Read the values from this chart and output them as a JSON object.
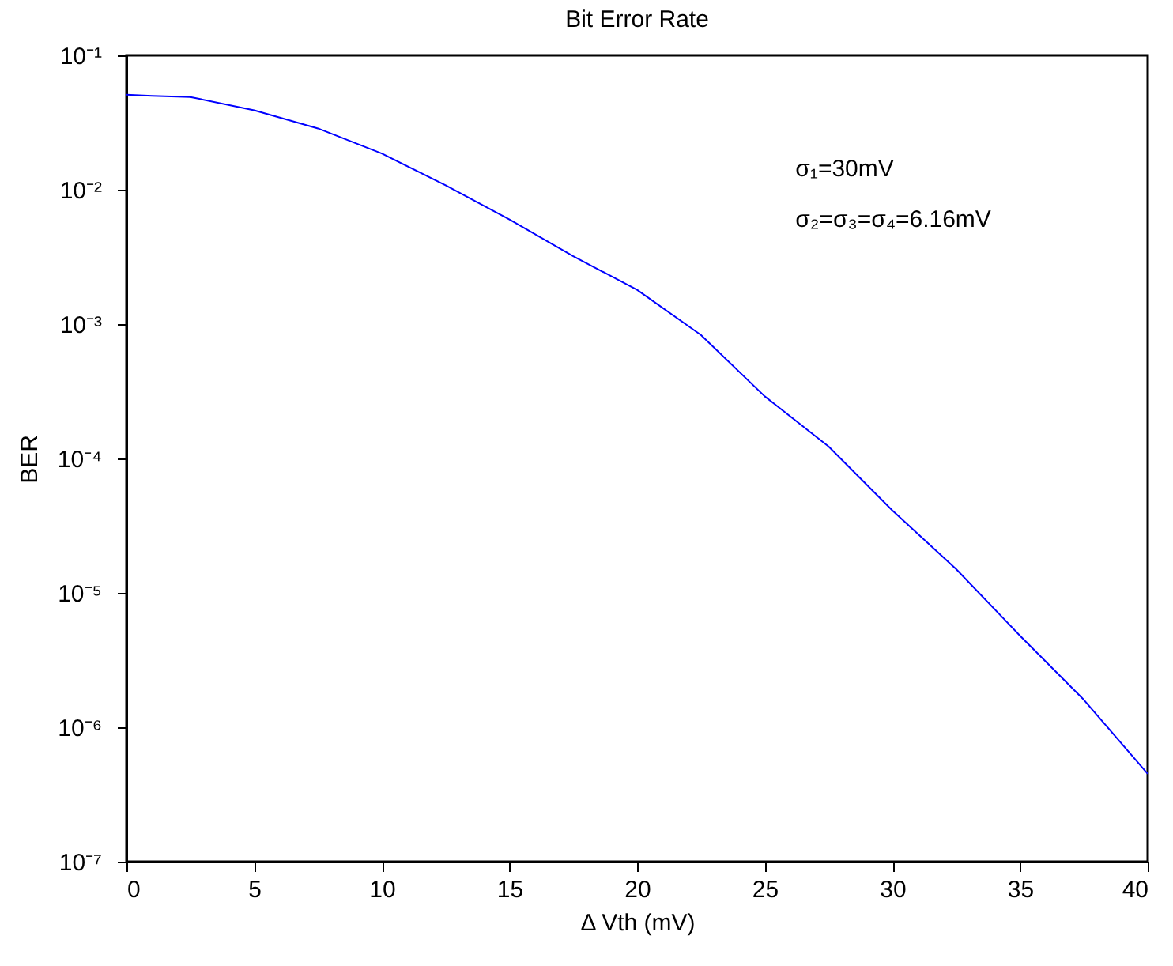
{
  "chart_data": {
    "type": "line",
    "title": "Bit Error Rate",
    "xlabel": "Δ Vth (mV)",
    "ylabel": "BER",
    "x": [
      0,
      1,
      2.5,
      5,
      7.5,
      10,
      12.5,
      15,
      17.5,
      20,
      22.5,
      25,
      27.5,
      30,
      32.5,
      35,
      37.5,
      40
    ],
    "series": [
      {
        "color": "#0000ff",
        "values": [
          0.051,
          0.05,
          0.049,
          0.039,
          0.0286,
          0.0186,
          0.0108,
          0.006,
          0.0032,
          0.0018,
          0.00083,
          0.00029,
          0.000123,
          4.1e-05,
          1.5e-05,
          4.8e-06,
          1.6e-06,
          4.5e-07
        ]
      }
    ],
    "xlim": [
      0,
      40
    ],
    "xticks": [
      0,
      5,
      10,
      15,
      20,
      25,
      30,
      35,
      40
    ],
    "ylim": [
      1e-07,
      0.1
    ],
    "yticks": [
      {
        "value": 1e-07,
        "label": "10⁻⁷"
      },
      {
        "value": 1e-06,
        "label": "10⁻⁶"
      },
      {
        "value": 1e-05,
        "label": "10⁻⁵"
      },
      {
        "value": 0.0001,
        "label": "10⁻⁴"
      },
      {
        "value": 0.001,
        "label": "10⁻³"
      },
      {
        "value": 0.01,
        "label": "10⁻²"
      },
      {
        "value": 0.1,
        "label": "10⁻¹"
      }
    ],
    "log": "y",
    "grid": false,
    "line_style": "solid",
    "marker": "none",
    "annotations": [
      "σ₁=30mV",
      "σ₂=σ₃=σ₄=6.16mV"
    ]
  }
}
